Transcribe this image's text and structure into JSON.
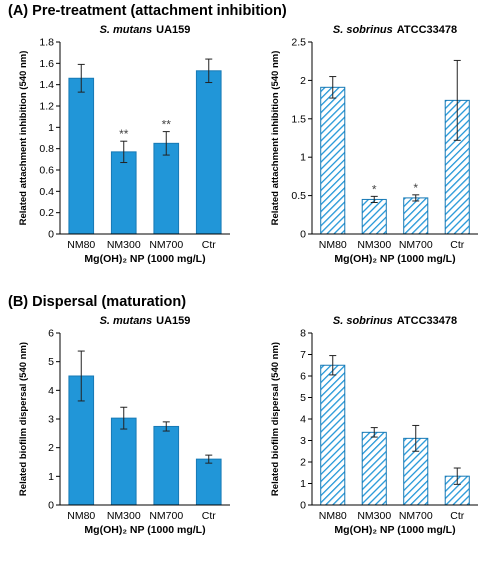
{
  "figure": {
    "section_a": "(A) Pre-treatment (attachment inhibition)",
    "section_b": "(B) Dispersal (maturation)"
  },
  "colors": {
    "bar": "#2196d8",
    "bar_edge": "#1779b5",
    "hatch": "#2196d8"
  },
  "chart_data": [
    {
      "type": "bar",
      "panel": "A-left",
      "title_italic": "S. mutans",
      "title_strain": "UA159",
      "xlabel": "Mg(OH)₂ NP (1000 mg/L)",
      "ylabel": "Related attachment inhibition (540 nm)",
      "categories": [
        "NM80",
        "NM300",
        "NM700",
        "Ctr"
      ],
      "values": [
        1.46,
        0.77,
        0.85,
        1.53
      ],
      "errors": [
        0.13,
        0.1,
        0.11,
        0.11
      ],
      "annotations": [
        "",
        "**",
        "**",
        ""
      ],
      "ylim": [
        0,
        1.8
      ],
      "yticks": [
        0,
        0.2,
        0.4,
        0.6,
        0.8,
        1,
        1.2,
        1.4,
        1.6,
        1.8
      ],
      "ytick_labels": [
        "0",
        "0.2",
        "0.4",
        "0.6",
        "0.8",
        "1",
        "1.2",
        "1.4",
        "1.6",
        "1.8"
      ],
      "fill": "solid"
    },
    {
      "type": "bar",
      "panel": "A-right",
      "title_italic": "S. sobrinus",
      "title_strain": "ATCC33478",
      "xlabel": "Mg(OH)₂ NP (1000 mg/L)",
      "ylabel": "Related attachment inhibition (540 nm)",
      "categories": [
        "NM80",
        "NM300",
        "NM700",
        "Ctr"
      ],
      "values": [
        1.91,
        0.45,
        0.47,
        1.74
      ],
      "errors": [
        0.14,
        0.04,
        0.04,
        0.52
      ],
      "annotations": [
        "",
        "*",
        "*",
        ""
      ],
      "ylim": [
        0,
        2.5
      ],
      "yticks": [
        0,
        0.5,
        1,
        1.5,
        2,
        2.5
      ],
      "ytick_labels": [
        "0",
        "0.5",
        "1",
        "1.5",
        "2",
        "2.5"
      ],
      "fill": "hatched"
    },
    {
      "type": "bar",
      "panel": "B-left",
      "title_italic": "S. mutans",
      "title_strain": "UA159",
      "xlabel": "Mg(OH)₂ NP (1000 mg/L)",
      "ylabel": "Related biofilm dispersal (540 nm)",
      "categories": [
        "NM80",
        "NM300",
        "NM700",
        "Ctr"
      ],
      "values": [
        4.5,
        3.03,
        2.74,
        1.6
      ],
      "errors": [
        0.87,
        0.38,
        0.16,
        0.14
      ],
      "annotations": [
        "",
        "",
        "",
        ""
      ],
      "ylim": [
        0,
        6
      ],
      "yticks": [
        0,
        1,
        2,
        3,
        4,
        5,
        6
      ],
      "ytick_labels": [
        "0",
        "1",
        "2",
        "3",
        "4",
        "5",
        "6"
      ],
      "fill": "solid"
    },
    {
      "type": "bar",
      "panel": "B-right",
      "title_italic": "S. sobrinus",
      "title_strain": "ATCC33478",
      "xlabel": "Mg(OH)₂ NP (1000 mg/L)",
      "ylabel": "Related biofilm dispersal (540 nm)",
      "categories": [
        "NM80",
        "NM300",
        "NM700",
        "Ctr"
      ],
      "values": [
        6.5,
        3.38,
        3.1,
        1.34
      ],
      "errors": [
        0.45,
        0.22,
        0.6,
        0.38
      ],
      "annotations": [
        "",
        "",
        "",
        ""
      ],
      "ylim": [
        0,
        8
      ],
      "yticks": [
        0,
        1,
        2,
        3,
        4,
        5,
        6,
        7,
        8
      ],
      "ytick_labels": [
        "0",
        "1",
        "2",
        "3",
        "4",
        "5",
        "6",
        "7",
        "8"
      ],
      "fill": "hatched"
    }
  ]
}
